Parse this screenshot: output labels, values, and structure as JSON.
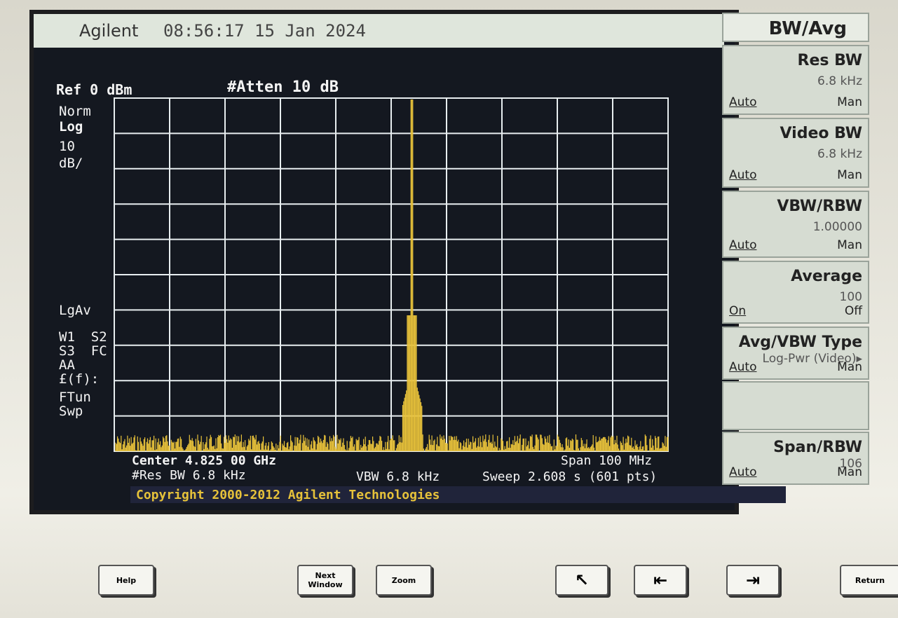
{
  "header": {
    "brand": "Agilent",
    "time": "08:56:17",
    "date": "15 Jan 2024"
  },
  "screen": {
    "ref": "Ref 0 dBm",
    "atten": "#Atten 10 dB",
    "side_labels": [
      "Norm",
      "Log",
      "10",
      "dB/",
      "LgAv",
      "W1  S2",
      "S3  FC",
      "AA",
      "£(f):",
      "FTun",
      "Swp"
    ],
    "center": "Center 4.825 00 GHz",
    "res_bw": "#Res BW 6.8 kHz",
    "vbw": "VBW 6.8 kHz",
    "span": "Span 100 MHz",
    "sweep": "Sweep 2.608 s (601 pts)",
    "copyright": "Copyright 2000-2012 Agilent Technologies"
  },
  "menu": {
    "title": "BW/Avg",
    "items": [
      {
        "label": "Res BW",
        "value": "6.8 kHz",
        "left": "Auto",
        "right": "Man"
      },
      {
        "label": "Video BW",
        "value": "6.8 kHz",
        "left": "Auto",
        "right": "Man"
      },
      {
        "label": "VBW/RBW",
        "value": "1.00000",
        "left": "Auto",
        "right": "Man"
      },
      {
        "label": "Average",
        "value": "100",
        "left": "On",
        "right": "Off"
      },
      {
        "label": "Avg/VBW Type",
        "value": "Log-Pwr (Video)▸",
        "left": "Auto",
        "right": "Man"
      },
      {
        "label": "Span/RBW",
        "value": "106",
        "left": "Auto",
        "right": "Man"
      }
    ]
  },
  "buttons": [
    "Help",
    "Next Window",
    "Zoom",
    "Return"
  ]
}
